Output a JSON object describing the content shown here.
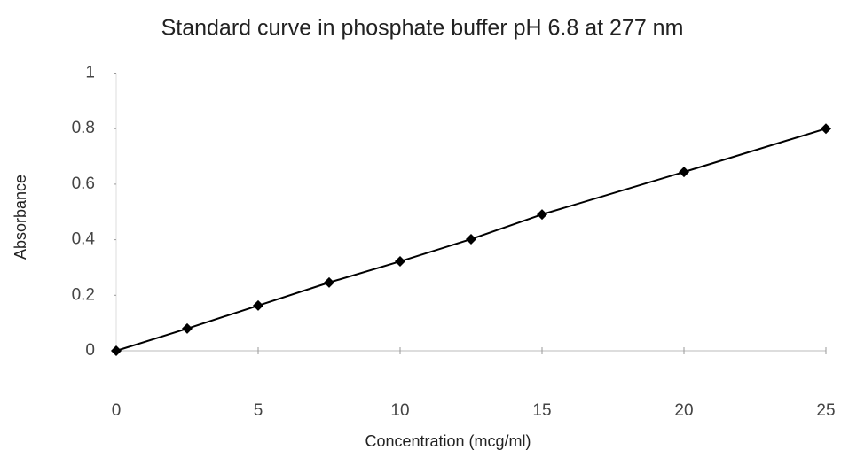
{
  "chart_data": {
    "type": "line",
    "title": "Standard curve in phosphate buffer pH 6.8 at 277 nm",
    "xlabel": "Concentration (mcg/ml)",
    "ylabel": "Absorbance",
    "x": [
      0,
      2.5,
      5,
      7.5,
      10,
      12.5,
      15,
      20,
      25
    ],
    "values": [
      0,
      0.08,
      0.163,
      0.246,
      0.322,
      0.402,
      0.491,
      0.644,
      0.8
    ],
    "color": "#000000",
    "xlim": [
      0,
      25
    ],
    "xticks": [
      0,
      5,
      10,
      15,
      20,
      25
    ],
    "ylim": [
      0,
      1
    ],
    "yticks": [
      0,
      0.2,
      0.4,
      0.6,
      0.8,
      1
    ],
    "grid": false
  }
}
